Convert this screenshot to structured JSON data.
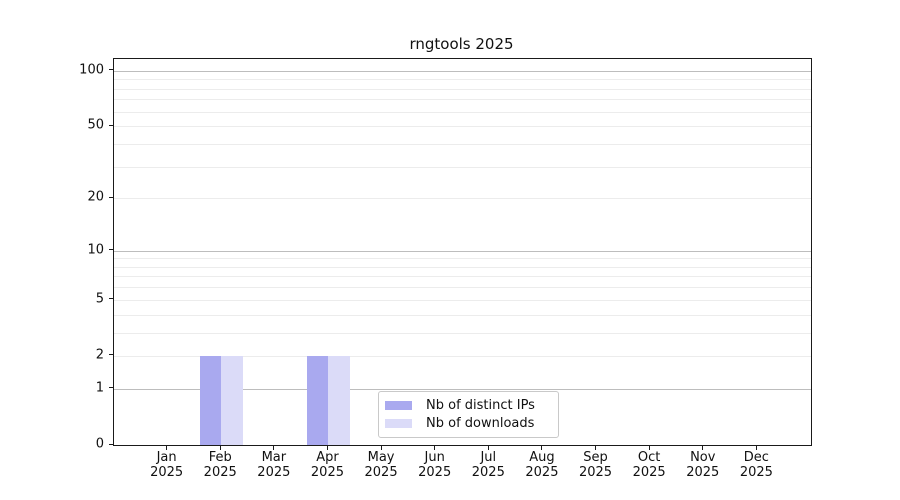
{
  "chart_data": {
    "type": "bar",
    "title": "rngtools 2025",
    "categories": [
      "Jan",
      "Feb",
      "Mar",
      "Apr",
      "May",
      "Jun",
      "Jul",
      "Aug",
      "Sep",
      "Oct",
      "Nov",
      "Dec"
    ],
    "x_year_label": "2025",
    "series": [
      {
        "name": "Nb of distinct IPs",
        "color": "#a9a9ef",
        "values": [
          0,
          2,
          0,
          2,
          0,
          0,
          0,
          0,
          0,
          0,
          0,
          0
        ]
      },
      {
        "name": "Nb of downloads",
        "color": "#dbdbf8",
        "values": [
          0,
          2,
          0,
          2,
          0,
          0,
          0,
          0,
          0,
          0,
          0,
          0
        ]
      }
    ],
    "y_axis": {
      "scale": "log(1+y)",
      "tick_values": [
        0,
        1,
        2,
        5,
        10,
        20,
        50,
        100
      ],
      "max_value": 116
    },
    "grid": {
      "minor_values": [
        2,
        3,
        4,
        5,
        6,
        7,
        8,
        9,
        20,
        30,
        40,
        50,
        60,
        70,
        80,
        90
      ],
      "major_values": [
        1,
        10,
        100
      ],
      "minor_color": "#ececec",
      "major_color": "#bdbdbd"
    },
    "legend": {
      "entries": [
        "Nb of distinct IPs",
        "Nb of downloads"
      ],
      "position": "inside bottom-center"
    },
    "colors": {
      "axis": "#1a1a1a",
      "background": "#ffffff"
    }
  }
}
